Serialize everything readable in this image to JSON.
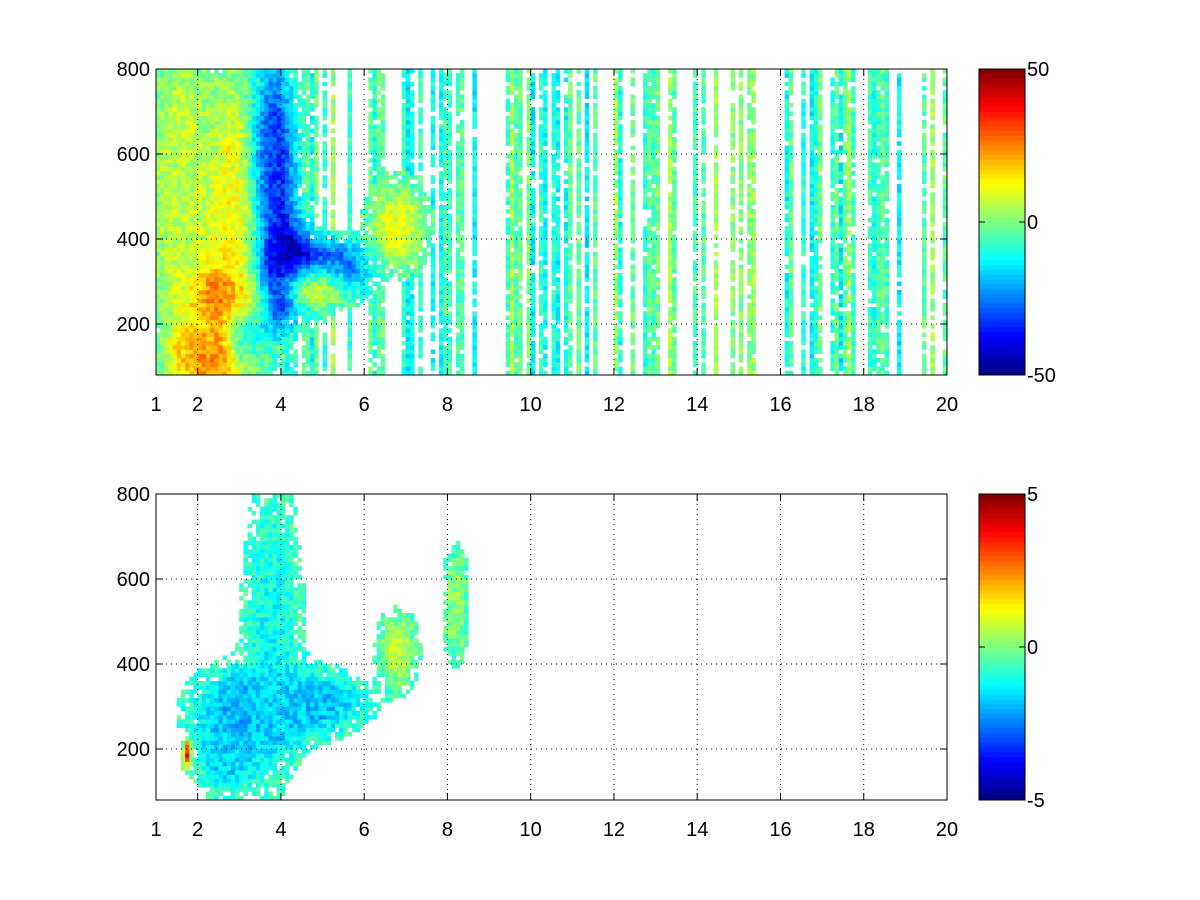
{
  "chart_data": [
    {
      "type": "heatmap",
      "title": "",
      "xlabel": "",
      "ylabel": "",
      "x_ticks": [
        1,
        2,
        4,
        6,
        8,
        10,
        12,
        14,
        16,
        18,
        20
      ],
      "y_ticks": [
        200,
        400,
        600,
        800
      ],
      "xlim": [
        1,
        20
      ],
      "ylim": [
        80,
        800
      ],
      "grid": true,
      "colormap": "jet",
      "color_range": [
        -50,
        50
      ],
      "colorbar_ticks": [
        50,
        0,
        -50
      ],
      "colorbar_tick_labels": [
        "50",
        "0",
        "-50"
      ],
      "density": 0.55,
      "features": [
        {
          "x": 2.5,
          "y": 130,
          "sx": 0.6,
          "sy": 40,
          "v": 38
        },
        {
          "x": 2.3,
          "y": 180,
          "sx": 0.4,
          "sy": 60,
          "v": 25
        },
        {
          "x": 2.7,
          "y": 270,
          "sx": 0.45,
          "sy": 40,
          "v": 45
        },
        {
          "x": 3.1,
          "y": 320,
          "sx": 0.35,
          "sy": 80,
          "v": 35
        },
        {
          "x": 2.9,
          "y": 450,
          "sx": 0.4,
          "sy": 220,
          "v": 18
        },
        {
          "x": 3.9,
          "y": 330,
          "sx": 0.6,
          "sy": 60,
          "v": -48
        },
        {
          "x": 3.8,
          "y": 520,
          "sx": 0.35,
          "sy": 200,
          "v": -28
        },
        {
          "x": 4.7,
          "y": 290,
          "sx": 0.5,
          "sy": 30,
          "v": 35
        },
        {
          "x": 5.3,
          "y": 330,
          "sx": 0.5,
          "sy": 40,
          "v": -22
        },
        {
          "x": 3.1,
          "y": 170,
          "sx": 0.25,
          "sy": 50,
          "v": -35
        },
        {
          "x": 6.8,
          "y": 430,
          "sx": 0.4,
          "sy": 60,
          "v": 15
        },
        {
          "x": 1.6,
          "y": 500,
          "sx": 0.5,
          "sy": 300,
          "v": 12
        }
      ]
    },
    {
      "type": "heatmap",
      "title": "",
      "xlabel": "",
      "ylabel": "",
      "x_ticks": [
        1,
        2,
        4,
        6,
        8,
        10,
        12,
        14,
        16,
        18,
        20
      ],
      "y_ticks": [
        200,
        400,
        600,
        800
      ],
      "xlim": [
        1,
        20
      ],
      "ylim": [
        80,
        800
      ],
      "grid": true,
      "colormap": "jet",
      "color_range": [
        -5,
        5
      ],
      "colorbar_ticks": [
        5,
        0,
        -5
      ],
      "colorbar_tick_labels": [
        "5",
        "0",
        "-5"
      ],
      "density": 0.0,
      "features": [
        {
          "x": 3.3,
          "y": 290,
          "sx": 0.8,
          "sy": 60,
          "v": -1.5
        },
        {
          "x": 4.8,
          "y": 310,
          "sx": 0.7,
          "sy": 40,
          "v": -1.2
        },
        {
          "x": 3.8,
          "y": 480,
          "sx": 0.35,
          "sy": 180,
          "v": -0.5
        },
        {
          "x": 2.7,
          "y": 180,
          "sx": 0.4,
          "sy": 50,
          "v": -1.0
        },
        {
          "x": 1.75,
          "y": 190,
          "sx": 0.06,
          "sy": 20,
          "v": 4.5
        },
        {
          "x": 6.8,
          "y": 430,
          "sx": 0.25,
          "sy": 50,
          "v": 1.2
        },
        {
          "x": 8.2,
          "y": 540,
          "sx": 0.15,
          "sy": 70,
          "v": 0.8
        }
      ]
    }
  ]
}
